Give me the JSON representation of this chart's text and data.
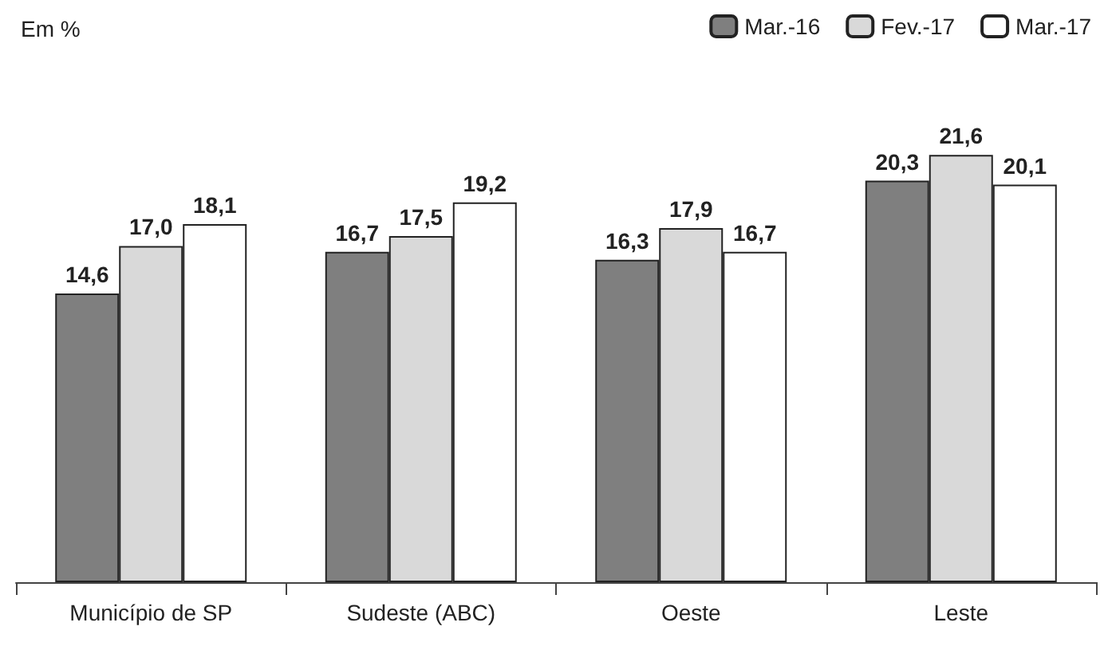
{
  "chart_data": {
    "type": "bar",
    "annotations": [
      "Em %"
    ],
    "categories": [
      "Município de SP",
      "Sudeste (ABC)",
      "Oeste",
      "Leste"
    ],
    "series": [
      {
        "name": "Mar.-16",
        "color": "#7f7f7f",
        "values": [
          14.6,
          16.7,
          16.3,
          20.3
        ],
        "value_labels": [
          "14,6",
          "16,7",
          "16,3",
          "20,3"
        ]
      },
      {
        "name": "Fev.-17",
        "color": "#d9d9d9",
        "values": [
          17.0,
          17.5,
          17.9,
          21.6
        ],
        "value_labels": [
          "17,0",
          "17,5",
          "17,9",
          "21,6"
        ]
      },
      {
        "name": "Mar.-17",
        "color": "#ffffff",
        "values": [
          18.1,
          19.2,
          16.7,
          20.1
        ],
        "value_labels": [
          "18,1",
          "19,2",
          "16,7",
          "20,1"
        ]
      }
    ],
    "tick_labels": "x",
    "legend": "top right"
  }
}
